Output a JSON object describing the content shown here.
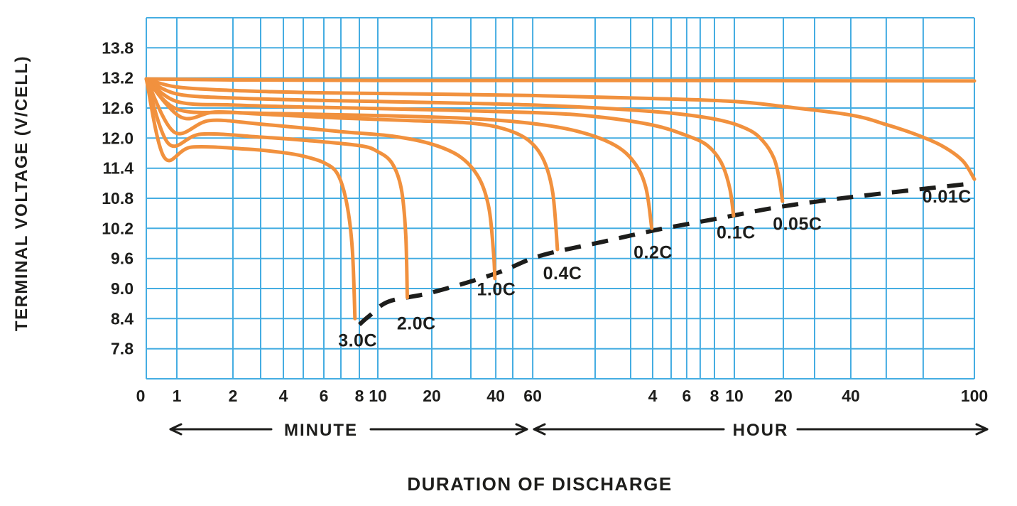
{
  "chart": {
    "y_axis_title": "TERMINAL VOLTAGE (V/CELL)",
    "x_axis_title": "DURATION OF DISCHARGE"
  },
  "chart_data": {
    "type": "line",
    "title": "",
    "xlabel": "DURATION OF DISCHARGE",
    "ylabel": "TERMINAL VOLTAGE (V/CELL)",
    "x_scale": "piecewise-log-time",
    "x_unit_sections": [
      {
        "label": "MINUTE"
      },
      {
        "label": "HOUR"
      }
    ],
    "y_axis": {
      "min": 7.2,
      "max": 14.4,
      "step": 0.6,
      "tick_labels": [
        "13.8",
        "13.2",
        "12.6",
        "12.0",
        "11.4",
        "10.8",
        "10.2",
        "9.6",
        "9.0",
        "8.4",
        "7.8"
      ]
    },
    "x_anchors": [
      [
        0.55,
        0.0
      ],
      [
        1,
        0.0369
      ],
      [
        2,
        0.1046
      ],
      [
        3,
        0.1381
      ],
      [
        4,
        0.1655
      ],
      [
        5,
        0.1895
      ],
      [
        6,
        0.2144
      ],
      [
        7,
        0.235
      ],
      [
        8,
        0.2573
      ],
      [
        10,
        0.2796
      ],
      [
        20,
        0.3448
      ],
      [
        30,
        0.3919
      ],
      [
        40,
        0.422
      ],
      [
        50,
        0.4425
      ],
      [
        60,
        0.4666
      ],
      [
        120,
        0.542
      ],
      [
        180,
        0.5849
      ],
      [
        240,
        0.6115
      ],
      [
        300,
        0.6338
      ],
      [
        360,
        0.6526
      ],
      [
        420,
        0.6689
      ],
      [
        480,
        0.6861
      ],
      [
        600,
        0.7101
      ],
      [
        1200,
        0.7693
      ],
      [
        1800,
        0.807
      ],
      [
        2400,
        0.8508
      ],
      [
        3600,
        0.8936
      ],
      [
        4800,
        0.9382
      ],
      [
        6000,
        1.0
      ]
    ],
    "x_gridlines_t_min": [
      1,
      2,
      3,
      4,
      5,
      6,
      7,
      8,
      10,
      20,
      30,
      40,
      50,
      60,
      120,
      180,
      240,
      300,
      360,
      420,
      480,
      600,
      1200,
      1800,
      2400,
      3600,
      4800,
      6000
    ],
    "x_ticks": [
      {
        "label": "0",
        "t": 0.55,
        "dx": -8
      },
      {
        "label": "1",
        "t": 1
      },
      {
        "label": "2",
        "t": 2
      },
      {
        "label": "4",
        "t": 4
      },
      {
        "label": "6",
        "t": 6
      },
      {
        "label": "8",
        "t": 8
      },
      {
        "label": "10",
        "t": 10
      },
      {
        "label": "20",
        "t": 20
      },
      {
        "label": "40",
        "t": 40
      },
      {
        "label": "60",
        "t": 60
      },
      {
        "label": "4",
        "t": 240
      },
      {
        "label": "6",
        "t": 360
      },
      {
        "label": "8",
        "t": 480
      },
      {
        "label": "10",
        "t": 600
      },
      {
        "label": "20",
        "t": 1200
      },
      {
        "label": "40",
        "t": 2400
      },
      {
        "label": "100",
        "t": 6000
      }
    ],
    "series": [
      {
        "name": "float-voltage-top",
        "label": null,
        "points": [
          [
            0.55,
            13.18
          ],
          [
            2,
            13.16
          ],
          [
            10,
            13.15
          ],
          [
            100,
            13.15
          ],
          [
            6000,
            13.14
          ]
        ]
      },
      {
        "name": "0.01C",
        "label": {
          "text": "0.01C",
          "t": 5320,
          "v": 10.84
        },
        "points": [
          [
            0.55,
            13.18
          ],
          [
            1,
            13.02
          ],
          [
            2,
            12.95
          ],
          [
            5,
            12.91
          ],
          [
            10,
            12.89
          ],
          [
            60,
            12.85
          ],
          [
            240,
            12.79
          ],
          [
            600,
            12.73
          ],
          [
            1200,
            12.63
          ],
          [
            2400,
            12.46
          ],
          [
            3600,
            12.27
          ],
          [
            4500,
            12.08
          ],
          [
            5200,
            11.85
          ],
          [
            5700,
            11.55
          ],
          [
            6000,
            11.18
          ]
        ]
      },
      {
        "name": "0.05C",
        "label": {
          "text": "0.05C",
          "t": 1440,
          "v": 10.3
        },
        "points": [
          [
            0.55,
            13.18
          ],
          [
            1,
            12.88
          ],
          [
            2,
            12.8
          ],
          [
            5,
            12.76
          ],
          [
            10,
            12.73
          ],
          [
            60,
            12.66
          ],
          [
            240,
            12.53
          ],
          [
            480,
            12.38
          ],
          [
            720,
            12.18
          ],
          [
            900,
            11.94
          ],
          [
            1050,
            11.6
          ],
          [
            1130,
            11.2
          ],
          [
            1185,
            10.74
          ]
        ]
      },
      {
        "name": "0.1C",
        "label": {
          "text": "0.1C",
          "t": 615,
          "v": 10.13
        },
        "points": [
          [
            0.55,
            13.18
          ],
          [
            1,
            12.73
          ],
          [
            2,
            12.66
          ],
          [
            5,
            12.62
          ],
          [
            10,
            12.59
          ],
          [
            60,
            12.51
          ],
          [
            120,
            12.43
          ],
          [
            240,
            12.26
          ],
          [
            360,
            12.05
          ],
          [
            450,
            11.85
          ],
          [
            520,
            11.5
          ],
          [
            570,
            11.0
          ],
          [
            595,
            10.45
          ]
        ]
      },
      {
        "name": "0.2C",
        "label": {
          "text": "0.2C",
          "t": 241,
          "v": 9.73
        },
        "points": [
          [
            0.55,
            13.18
          ],
          [
            1,
            12.58
          ],
          [
            2,
            12.51
          ],
          [
            5,
            12.48
          ],
          [
            10,
            12.45
          ],
          [
            30,
            12.39
          ],
          [
            60,
            12.29
          ],
          [
            100,
            12.13
          ],
          [
            150,
            11.86
          ],
          [
            190,
            11.5
          ],
          [
            220,
            11.0
          ],
          [
            237,
            10.2
          ]
        ]
      },
      {
        "name": "0.4C",
        "label": {
          "text": "0.4C",
          "t": 83.5,
          "v": 9.31
        },
        "points": [
          [
            0.55,
            13.18
          ],
          [
            1.05,
            12.42
          ],
          [
            1.6,
            12.52
          ],
          [
            3,
            12.48
          ],
          [
            7,
            12.4
          ],
          [
            15,
            12.35
          ],
          [
            30,
            12.3
          ],
          [
            45,
            12.18
          ],
          [
            58,
            11.95
          ],
          [
            68,
            11.55
          ],
          [
            75,
            10.9
          ],
          [
            79,
            9.78
          ]
        ]
      },
      {
        "name": "1.0C",
        "label": {
          "text": "1.0C",
          "t": 40.3,
          "v": 8.99
        },
        "points": [
          [
            0.55,
            13.18
          ],
          [
            0.95,
            12.12
          ],
          [
            1.5,
            12.35
          ],
          [
            3,
            12.28
          ],
          [
            7,
            12.13
          ],
          [
            12,
            12.04
          ],
          [
            20,
            11.88
          ],
          [
            27,
            11.62
          ],
          [
            33,
            11.2
          ],
          [
            37,
            10.6
          ],
          [
            39,
            9.7
          ],
          [
            39.6,
            9.2
          ]
        ]
      },
      {
        "name": "2.0C",
        "label": {
          "text": "2.0C",
          "t": 16.4,
          "v": 8.31
        },
        "points": [
          [
            0.55,
            13.18
          ],
          [
            0.85,
            11.89
          ],
          [
            1.35,
            12.08
          ],
          [
            3,
            12.02
          ],
          [
            5,
            11.96
          ],
          [
            8,
            11.85
          ],
          [
            10,
            11.73
          ],
          [
            12,
            11.5
          ],
          [
            13.5,
            11.0
          ],
          [
            14.3,
            10.1
          ],
          [
            14.6,
            8.82
          ]
        ]
      },
      {
        "name": "3.0C",
        "label": {
          "text": "3.0C",
          "t": 7.9,
          "v": 7.97
        },
        "points": [
          [
            0.55,
            13.18
          ],
          [
            0.78,
            11.62
          ],
          [
            1.2,
            11.82
          ],
          [
            2.5,
            11.78
          ],
          [
            4,
            11.71
          ],
          [
            5,
            11.64
          ],
          [
            6,
            11.51
          ],
          [
            6.8,
            11.28
          ],
          [
            7.3,
            10.7
          ],
          [
            7.6,
            9.8
          ],
          [
            7.75,
            8.4
          ]
        ]
      }
    ],
    "cutoff_line": {
      "style": "dashed",
      "points": [
        [
          8,
          8.28
        ],
        [
          9,
          8.45
        ],
        [
          11.5,
          8.74
        ],
        [
          20,
          8.92
        ],
        [
          40,
          9.3
        ],
        [
          65,
          9.65
        ],
        [
          130,
          9.93
        ],
        [
          260,
          10.18
        ],
        [
          520,
          10.41
        ],
        [
          1150,
          10.63
        ],
        [
          2600,
          10.84
        ],
        [
          6000,
          11.1
        ]
      ]
    },
    "colors": {
      "curve": "#F1913E",
      "grid": "#45ADE2",
      "text": "#1D1D1B",
      "background": "#FFFFFF"
    }
  }
}
